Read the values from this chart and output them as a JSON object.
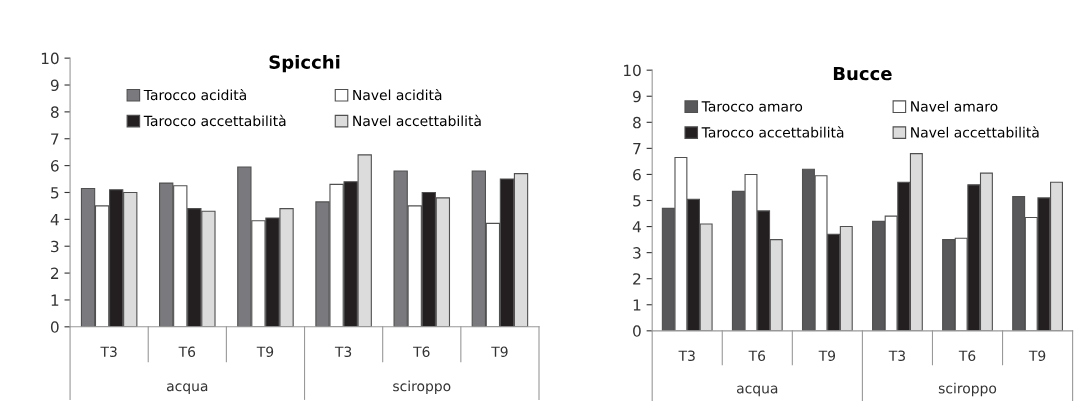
{
  "chart_data": [
    {
      "type": "bar",
      "title": "Spicchi",
      "categories": [
        "T3",
        "T6",
        "T9",
        "T3",
        "T6",
        "T9"
      ],
      "series": [
        {
          "name": "Tarocco acidità",
          "color": "#7a7a7e",
          "values": [
            5.15,
            5.35,
            5.95,
            4.65,
            5.8,
            5.8
          ]
        },
        {
          "name": "Navel acidità",
          "color": "#ffffff",
          "values": [
            4.5,
            5.25,
            3.95,
            5.3,
            4.5,
            3.85
          ]
        },
        {
          "name": "Tarocco accettabilità",
          "color": "#231f20",
          "values": [
            5.1,
            4.4,
            4.05,
            5.4,
            5.0,
            5.5
          ]
        },
        {
          "name": "Navel accettabilità",
          "color": "#dcdcdc",
          "values": [
            5.0,
            4.3,
            4.4,
            6.4,
            4.8,
            5.7
          ]
        }
      ],
      "ylim": [
        0,
        10
      ],
      "yticks": [
        0,
        1,
        2,
        3,
        4,
        5,
        6,
        7,
        8,
        9,
        10
      ],
      "grid": false,
      "legend": "top",
      "annotations": [
        "acqua",
        "sciroppo"
      ]
    },
    {
      "type": "bar",
      "title": "Bucce",
      "categories": [
        "T3",
        "T6",
        "T9",
        "T3",
        "T6",
        "T9"
      ],
      "series": [
        {
          "name": "Tarocco amaro",
          "color": "#58585a",
          "values": [
            4.7,
            5.35,
            6.2,
            4.2,
            3.5,
            5.15
          ]
        },
        {
          "name": "Navel amaro",
          "color": "#ffffff",
          "values": [
            6.65,
            6.0,
            5.95,
            4.4,
            3.55,
            4.35
          ]
        },
        {
          "name": "Tarocco accettabilità",
          "color": "#231f20",
          "values": [
            5.05,
            4.6,
            3.7,
            5.7,
            5.6,
            5.1
          ]
        },
        {
          "name": "Navel accettabilità",
          "color": "#dcdcdc",
          "values": [
            4.1,
            3.5,
            4.0,
            6.8,
            6.05,
            5.7
          ]
        }
      ],
      "ylim": [
        0,
        10
      ],
      "yticks": [
        0,
        1,
        2,
        3,
        4,
        5,
        6,
        7,
        8,
        9,
        10
      ],
      "grid": false,
      "legend": "top",
      "annotations": [
        "acqua",
        "sciroppo"
      ]
    }
  ]
}
